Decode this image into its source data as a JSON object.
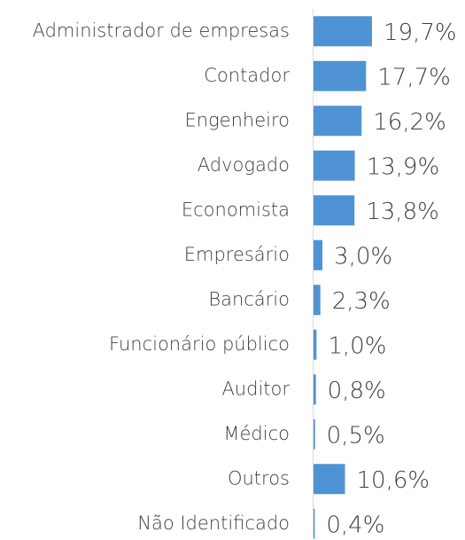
{
  "chart_data": {
    "type": "bar",
    "orientation": "horizontal",
    "color": "#5093d4",
    "categories": [
      "Administrador de empresas",
      "Contador",
      "Engenheiro",
      "Advogado",
      "Economista",
      "Empresário",
      "Bancário",
      "Funcionário público",
      "Auditor",
      "Médico",
      "Outros",
      "Não Identificado"
    ],
    "values": [
      19.7,
      17.7,
      16.2,
      13.9,
      13.8,
      3.0,
      2.3,
      1.0,
      0.8,
      0.5,
      10.6,
      0.4
    ],
    "value_labels": [
      "19,7%",
      "17,7%",
      "16,2%",
      "13,9%",
      "13,8%",
      "3,0%",
      "2,3%",
      "1,0%",
      "0,8%",
      "0,5%",
      "10,6%",
      "0,4%"
    ]
  }
}
